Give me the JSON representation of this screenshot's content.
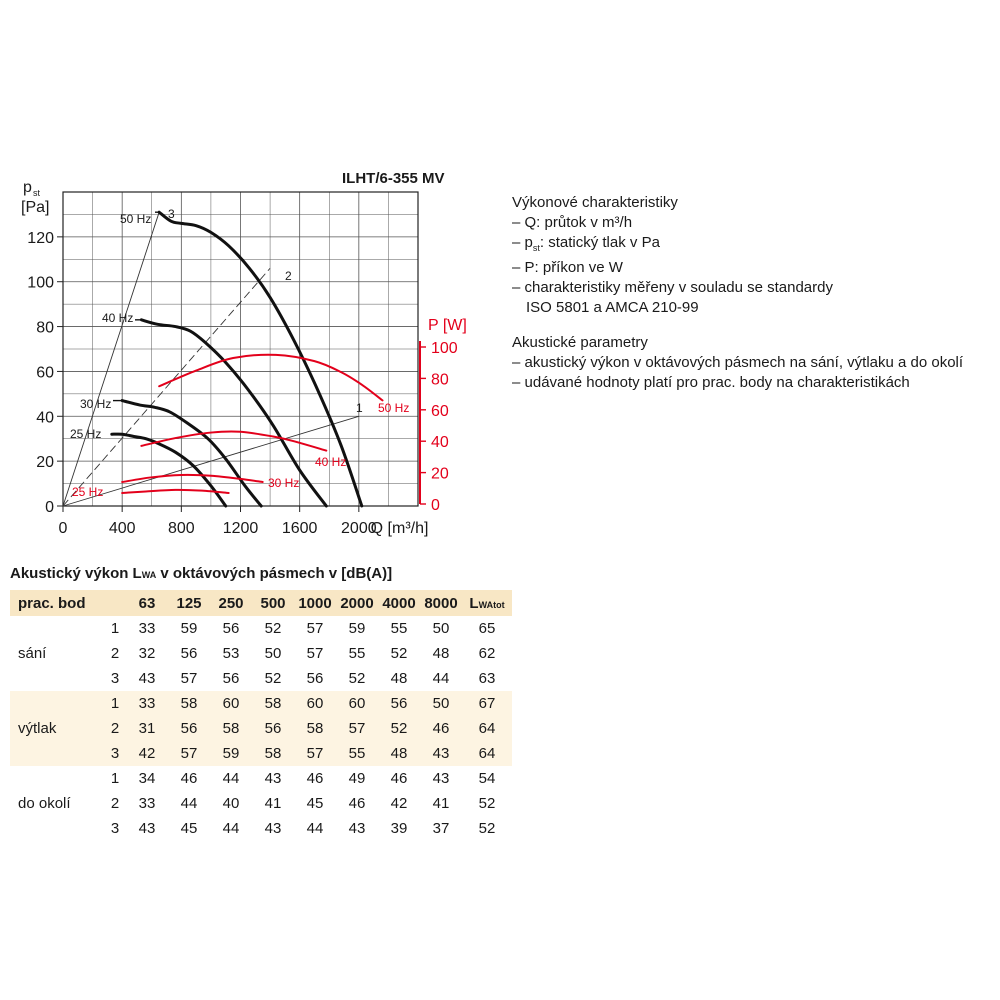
{
  "chart_data": {
    "type": "line",
    "title": "ILHT/6-355 MV",
    "x_axis": {
      "label": "Q [m³/h]",
      "ticks": [
        "0",
        "400",
        "800",
        "1200",
        "1600",
        "2000"
      ],
      "range": [
        0,
        2400
      ]
    },
    "y_axis_left": {
      "label_main": "p",
      "label_sub": "st",
      "label_unit": "[Pa]",
      "ticks": [
        "0",
        "20",
        "40",
        "60",
        "80",
        "100",
        "120"
      ],
      "range": [
        0,
        140
      ]
    },
    "y_axis_right": {
      "label": "P [W]",
      "ticks": [
        "0",
        "20",
        "40",
        "60",
        "80",
        "100"
      ],
      "range": [
        0,
        100
      ],
      "color": "#e3001b"
    },
    "grid": true,
    "pressure_series": [
      {
        "name": "25 Hz",
        "points": [
          [
            330,
            32
          ],
          [
            400,
            32
          ],
          [
            480,
            31
          ],
          [
            560,
            30
          ],
          [
            640,
            28
          ],
          [
            760,
            24
          ],
          [
            880,
            18
          ],
          [
            1000,
            9
          ],
          [
            1100,
            0
          ]
        ]
      },
      {
        "name": "30 Hz",
        "points": [
          [
            400,
            47
          ],
          [
            520,
            45
          ],
          [
            620,
            44
          ],
          [
            720,
            42
          ],
          [
            840,
            37
          ],
          [
            980,
            30
          ],
          [
            1100,
            21
          ],
          [
            1230,
            9
          ],
          [
            1340,
            0
          ]
        ]
      },
      {
        "name": "40 Hz",
        "points": [
          [
            530,
            83
          ],
          [
            640,
            81
          ],
          [
            760,
            80
          ],
          [
            860,
            78
          ],
          [
            960,
            73
          ],
          [
            1100,
            64
          ],
          [
            1250,
            52
          ],
          [
            1420,
            36
          ],
          [
            1600,
            16
          ],
          [
            1780,
            0
          ]
        ]
      },
      {
        "name": "50 Hz",
        "points": [
          [
            650,
            131
          ],
          [
            730,
            127
          ],
          [
            800,
            126
          ],
          [
            900,
            125
          ],
          [
            1000,
            122
          ],
          [
            1120,
            116
          ],
          [
            1260,
            106
          ],
          [
            1400,
            93
          ],
          [
            1560,
            74
          ],
          [
            1720,
            52
          ],
          [
            1880,
            27
          ],
          [
            2020,
            0
          ]
        ]
      }
    ],
    "power_series": [
      {
        "name": "25 Hz",
        "points": [
          [
            400,
            7
          ],
          [
            560,
            8
          ],
          [
            760,
            9
          ],
          [
            940,
            8.5
          ],
          [
            1120,
            7
          ]
        ]
      },
      {
        "name": "30 Hz",
        "points": [
          [
            400,
            14
          ],
          [
            600,
            17
          ],
          [
            800,
            18.5
          ],
          [
            1000,
            18
          ],
          [
            1200,
            16
          ],
          [
            1350,
            14
          ]
        ]
      },
      {
        "name": "40 Hz",
        "points": [
          [
            530,
            37
          ],
          [
            760,
            42
          ],
          [
            1000,
            45.5
          ],
          [
            1200,
            46
          ],
          [
            1420,
            43
          ],
          [
            1560,
            40
          ],
          [
            1780,
            34
          ]
        ]
      },
      {
        "name": "50 Hz",
        "points": [
          [
            650,
            75
          ],
          [
            900,
            85
          ],
          [
            1150,
            93
          ],
          [
            1440,
            95
          ],
          [
            1700,
            91
          ],
          [
            1880,
            84
          ],
          [
            2020,
            76
          ],
          [
            2160,
            66
          ]
        ]
      }
    ],
    "system_curves": [
      {
        "name": "1",
        "points": [
          [
            0,
            0
          ],
          [
            2000,
            40
          ]
        ]
      },
      {
        "name": "2",
        "points": [
          [
            0,
            0
          ],
          [
            1400,
            106
          ]
        ]
      },
      {
        "name": "3",
        "points": [
          [
            0,
            0
          ],
          [
            650,
            131
          ]
        ]
      }
    ],
    "red_labels": [
      "25 Hz",
      "30 Hz",
      "40 Hz",
      "50 Hz"
    ],
    "curve_numbers": [
      "1",
      "2",
      "3"
    ]
  },
  "description": {
    "heading1": "Výkonové charakteristiky",
    "items1": [
      "– Q: průtok v m³/h",
      "– statický tlak v Pa",
      "– P: příkon ve W",
      "– charakteristiky měřeny v souladu se standardy",
      "ISO 5801 a AMCA 210-99"
    ],
    "pst_prefix": "– p",
    "pst_sub": "st",
    "pst_suffix": ": statický tlak v Pa",
    "heading2": "Akustické parametry",
    "items2": [
      "– akustický výkon v oktávových pásmech na sání, výtlaku a do okolí",
      "– udávané hodnoty platí pro prac. body na charakteristikách"
    ]
  },
  "table": {
    "title_prefix": "Akustický výkon L",
    "title_sub": "WA",
    "title_suffix": " v oktávových pásmech v [dB(A)]",
    "col_work_point": "prac. bod",
    "bands": [
      "63",
      "125",
      "250",
      "500",
      "1000",
      "2000",
      "4000",
      "8000"
    ],
    "total_main": "L",
    "total_sub": "WAtot",
    "groups": [
      {
        "name": "sání",
        "rows": [
          {
            "pt": "1",
            "vals": [
              "33",
              "59",
              "56",
              "52",
              "57",
              "59",
              "55",
              "50"
            ],
            "tot": "65"
          },
          {
            "pt": "2",
            "vals": [
              "32",
              "56",
              "53",
              "50",
              "57",
              "55",
              "52",
              "48"
            ],
            "tot": "62"
          },
          {
            "pt": "3",
            "vals": [
              "43",
              "57",
              "56",
              "52",
              "56",
              "52",
              "48",
              "44"
            ],
            "tot": "63"
          }
        ]
      },
      {
        "name": "výtlak",
        "rows": [
          {
            "pt": "1",
            "vals": [
              "33",
              "58",
              "60",
              "58",
              "60",
              "60",
              "56",
              "50"
            ],
            "tot": "67"
          },
          {
            "pt": "2",
            "vals": [
              "31",
              "56",
              "58",
              "56",
              "58",
              "57",
              "52",
              "46"
            ],
            "tot": "64"
          },
          {
            "pt": "3",
            "vals": [
              "42",
              "57",
              "59",
              "58",
              "57",
              "55",
              "48",
              "43"
            ],
            "tot": "64"
          }
        ]
      },
      {
        "name": "do okolí",
        "rows": [
          {
            "pt": "1",
            "vals": [
              "34",
              "46",
              "44",
              "43",
              "46",
              "49",
              "46",
              "43"
            ],
            "tot": "54"
          },
          {
            "pt": "2",
            "vals": [
              "33",
              "44",
              "40",
              "41",
              "45",
              "46",
              "42",
              "41"
            ],
            "tot": "52"
          },
          {
            "pt": "3",
            "vals": [
              "43",
              "45",
              "44",
              "43",
              "44",
              "43",
              "39",
              "37"
            ],
            "tot": "52"
          }
        ]
      }
    ]
  }
}
